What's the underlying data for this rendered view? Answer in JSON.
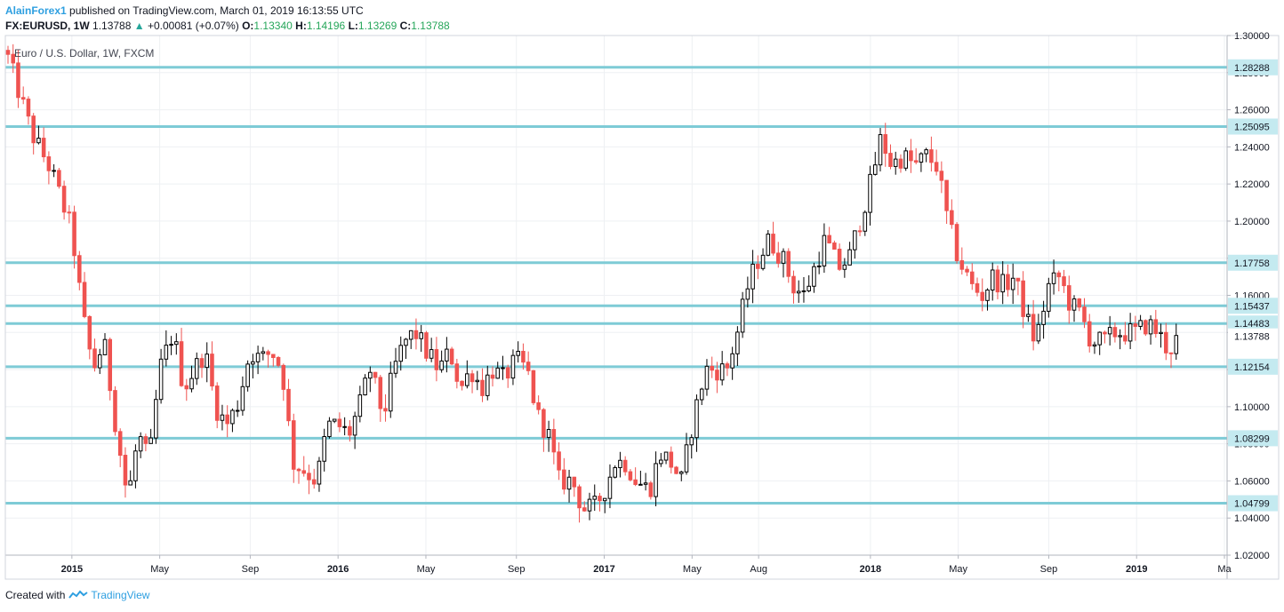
{
  "header": {
    "user": "AlainForex1",
    "published": "published on TradingView.com, March 01, 2019 16:13:55 UTC",
    "symbol": "FX:EURUSD, 1W",
    "last": "1.13788",
    "arrow": "▲",
    "change": "+0.00081 (+0.07%)",
    "o_label": "O:",
    "o_value": "1.13340",
    "h_label": "H:",
    "h_value": "1.14196",
    "l_label": "L:",
    "l_value": "1.13269",
    "c_label": "C:",
    "c_value": "1.13788"
  },
  "chart_title": "Euro / U.S. Dollar, 1W, FXCM",
  "footer": {
    "created_with": "Created with",
    "brand": "TradingView"
  },
  "colors": {
    "level_line": "#7ecbd6",
    "up": "#ffffff",
    "up_border": "#000000",
    "down": "#ef5350",
    "grid": "#eef0f3",
    "label_bg": "#c4eaf0"
  },
  "chart_data": {
    "type": "candlestick",
    "title": "Euro / U.S. Dollar, 1W, FXCM",
    "y_ticks": [
      1.02,
      1.04,
      1.06,
      1.08,
      1.1,
      1.12,
      1.14,
      1.16,
      1.18,
      1.2,
      1.22,
      1.24,
      1.26,
      1.28,
      1.3
    ],
    "ylim": [
      1.02,
      1.3
    ],
    "x_ticks": [
      {
        "label": "2015",
        "year": 2015.0,
        "bold": true
      },
      {
        "label": "May",
        "year": 2015.33,
        "bold": false
      },
      {
        "label": "Sep",
        "year": 2015.67,
        "bold": false
      },
      {
        "label": "2016",
        "year": 2016.0,
        "bold": true
      },
      {
        "label": "May",
        "year": 2016.33,
        "bold": false
      },
      {
        "label": "Sep",
        "year": 2016.67,
        "bold": false
      },
      {
        "label": "2017",
        "year": 2017.0,
        "bold": true
      },
      {
        "label": "May",
        "year": 2017.33,
        "bold": false
      },
      {
        "label": "Aug",
        "year": 2017.58,
        "bold": false
      },
      {
        "label": "2018",
        "year": 2018.0,
        "bold": true
      },
      {
        "label": "May",
        "year": 2018.33,
        "bold": false
      },
      {
        "label": "Sep",
        "year": 2018.67,
        "bold": false
      },
      {
        "label": "2019",
        "year": 2019.0,
        "bold": true
      },
      {
        "label": "Ma",
        "year": 2019.33,
        "bold": false
      }
    ],
    "xlim": [
      2014.75,
      2019.34
    ],
    "levels": [
      1.28288,
      1.25095,
      1.17758,
      1.15437,
      1.14483,
      1.12154,
      1.08299,
      1.04799
    ],
    "level_labels": [
      "1.28288",
      "1.25095",
      "1.17758",
      "1.15437",
      "1.14483",
      "1.12154",
      "1.08299",
      "1.04799"
    ],
    "last_price": 1.13788,
    "last_price_label": "1.13788",
    "close_series": [
      {
        "year": 2014.76,
        "close": 1.288
      },
      {
        "year": 2014.85,
        "close": 1.247
      },
      {
        "year": 2014.92,
        "close": 1.228
      },
      {
        "year": 2015.0,
        "close": 1.195
      },
      {
        "year": 2015.04,
        "close": 1.15
      },
      {
        "year": 2015.08,
        "close": 1.12
      },
      {
        "year": 2015.12,
        "close": 1.135
      },
      {
        "year": 2015.17,
        "close": 1.085
      },
      {
        "year": 2015.21,
        "close": 1.05
      },
      {
        "year": 2015.25,
        "close": 1.085
      },
      {
        "year": 2015.29,
        "close": 1.07
      },
      {
        "year": 2015.33,
        "close": 1.12
      },
      {
        "year": 2015.38,
        "close": 1.14
      },
      {
        "year": 2015.42,
        "close": 1.11
      },
      {
        "year": 2015.46,
        "close": 1.12
      },
      {
        "year": 2015.5,
        "close": 1.13
      },
      {
        "year": 2015.54,
        "close": 1.1
      },
      {
        "year": 2015.58,
        "close": 1.09
      },
      {
        "year": 2015.62,
        "close": 1.1
      },
      {
        "year": 2015.67,
        "close": 1.13
      },
      {
        "year": 2015.71,
        "close": 1.125
      },
      {
        "year": 2015.75,
        "close": 1.13
      },
      {
        "year": 2015.79,
        "close": 1.12
      },
      {
        "year": 2015.83,
        "close": 1.07
      },
      {
        "year": 2015.88,
        "close": 1.065
      },
      {
        "year": 2015.92,
        "close": 1.06
      },
      {
        "year": 2015.96,
        "close": 1.09
      },
      {
        "year": 2016.0,
        "close": 1.09
      },
      {
        "year": 2016.04,
        "close": 1.085
      },
      {
        "year": 2016.08,
        "close": 1.1
      },
      {
        "year": 2016.12,
        "close": 1.12
      },
      {
        "year": 2016.17,
        "close": 1.095
      },
      {
        "year": 2016.21,
        "close": 1.12
      },
      {
        "year": 2016.25,
        "close": 1.135
      },
      {
        "year": 2016.29,
        "close": 1.14
      },
      {
        "year": 2016.33,
        "close": 1.13
      },
      {
        "year": 2016.38,
        "close": 1.12
      },
      {
        "year": 2016.42,
        "close": 1.13
      },
      {
        "year": 2016.46,
        "close": 1.11
      },
      {
        "year": 2016.5,
        "close": 1.12
      },
      {
        "year": 2016.54,
        "close": 1.11
      },
      {
        "year": 2016.58,
        "close": 1.12
      },
      {
        "year": 2016.62,
        "close": 1.115
      },
      {
        "year": 2016.67,
        "close": 1.125
      },
      {
        "year": 2016.71,
        "close": 1.12
      },
      {
        "year": 2016.75,
        "close": 1.095
      },
      {
        "year": 2016.79,
        "close": 1.085
      },
      {
        "year": 2016.83,
        "close": 1.06
      },
      {
        "year": 2016.88,
        "close": 1.06
      },
      {
        "year": 2016.92,
        "close": 1.045
      },
      {
        "year": 2016.96,
        "close": 1.045
      },
      {
        "year": 2017.0,
        "close": 1.055
      },
      {
        "year": 2017.04,
        "close": 1.07
      },
      {
        "year": 2017.08,
        "close": 1.07
      },
      {
        "year": 2017.12,
        "close": 1.06
      },
      {
        "year": 2017.17,
        "close": 1.055
      },
      {
        "year": 2017.21,
        "close": 1.075
      },
      {
        "year": 2017.25,
        "close": 1.07
      },
      {
        "year": 2017.29,
        "close": 1.06
      },
      {
        "year": 2017.33,
        "close": 1.09
      },
      {
        "year": 2017.38,
        "close": 1.12
      },
      {
        "year": 2017.42,
        "close": 1.12
      },
      {
        "year": 2017.46,
        "close": 1.12
      },
      {
        "year": 2017.5,
        "close": 1.14
      },
      {
        "year": 2017.54,
        "close": 1.165
      },
      {
        "year": 2017.58,
        "close": 1.18
      },
      {
        "year": 2017.62,
        "close": 1.19
      },
      {
        "year": 2017.67,
        "close": 1.18
      },
      {
        "year": 2017.71,
        "close": 1.165
      },
      {
        "year": 2017.75,
        "close": 1.16
      },
      {
        "year": 2017.79,
        "close": 1.175
      },
      {
        "year": 2017.83,
        "close": 1.19
      },
      {
        "year": 2017.88,
        "close": 1.175
      },
      {
        "year": 2017.92,
        "close": 1.18
      },
      {
        "year": 2017.96,
        "close": 1.2
      },
      {
        "year": 2018.0,
        "close": 1.22
      },
      {
        "year": 2018.04,
        "close": 1.245
      },
      {
        "year": 2018.08,
        "close": 1.23
      },
      {
        "year": 2018.12,
        "close": 1.235
      },
      {
        "year": 2018.17,
        "close": 1.23
      },
      {
        "year": 2018.21,
        "close": 1.235
      },
      {
        "year": 2018.25,
        "close": 1.23
      },
      {
        "year": 2018.29,
        "close": 1.2
      },
      {
        "year": 2018.33,
        "close": 1.18
      },
      {
        "year": 2018.38,
        "close": 1.165
      },
      {
        "year": 2018.42,
        "close": 1.16
      },
      {
        "year": 2018.46,
        "close": 1.17
      },
      {
        "year": 2018.5,
        "close": 1.165
      },
      {
        "year": 2018.54,
        "close": 1.17
      },
      {
        "year": 2018.58,
        "close": 1.15
      },
      {
        "year": 2018.62,
        "close": 1.135
      },
      {
        "year": 2018.67,
        "close": 1.165
      },
      {
        "year": 2018.71,
        "close": 1.17
      },
      {
        "year": 2018.75,
        "close": 1.155
      },
      {
        "year": 2018.79,
        "close": 1.15
      },
      {
        "year": 2018.83,
        "close": 1.135
      },
      {
        "year": 2018.88,
        "close": 1.135
      },
      {
        "year": 2018.92,
        "close": 1.14
      },
      {
        "year": 2018.96,
        "close": 1.14
      },
      {
        "year": 2019.0,
        "close": 1.14
      },
      {
        "year": 2019.04,
        "close": 1.145
      },
      {
        "year": 2019.08,
        "close": 1.14
      },
      {
        "year": 2019.12,
        "close": 1.13
      },
      {
        "year": 2019.16,
        "close": 1.138
      }
    ]
  }
}
